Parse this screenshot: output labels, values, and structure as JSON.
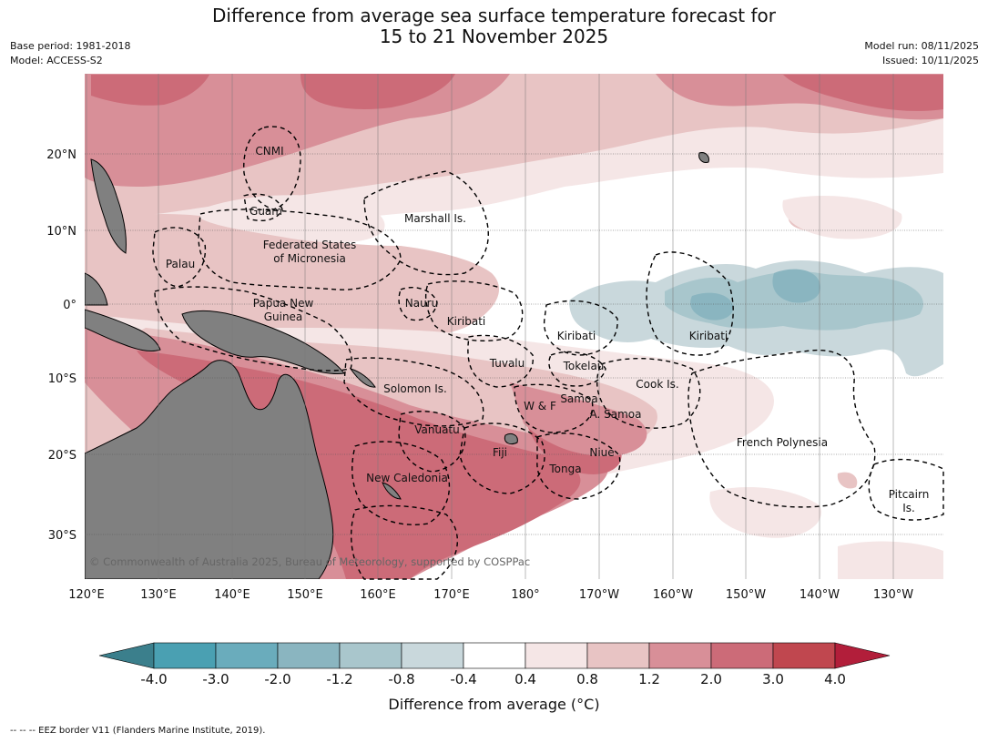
{
  "title": {
    "line1": "Difference from average sea surface temperature forecast for",
    "line2": "15 to 21 November 2025"
  },
  "meta_left": {
    "base_period": "Base period: 1981-2018",
    "model": "Model: ACCESS-S2"
  },
  "meta_right": {
    "model_run": "Model run: 08/11/2025",
    "issued": "Issued: 10/11/2025"
  },
  "map": {
    "lat_ticks": [
      "20°N",
      "10°N",
      "0°",
      "10°S",
      "20°S",
      "30°S"
    ],
    "lon_ticks": [
      "120°E",
      "130°E",
      "140°E",
      "150°E",
      "160°E",
      "170°E",
      "180°",
      "170°W",
      "160°W",
      "150°W",
      "140°W",
      "130°W"
    ],
    "labels": {
      "cnmi": "CNMI",
      "guam": "Guam",
      "marshall": "Marshall Is.",
      "palau": "Palau",
      "fsm": "Federated States",
      "fsm2": "of Micronesia",
      "png": "Papua New",
      "png2": "Guinea",
      "nauru": "Nauru",
      "kiribati_w": "Kiribati",
      "kiribati_c": "Kiribati",
      "kiribati_e": "Kiribati",
      "tuvalu": "Tuvalu",
      "tokelau": "Tokelau",
      "cook": "Cook Is.",
      "solomon": "Solomon Is.",
      "samoa": "Samoa",
      "wf": "W & F",
      "asamoa": "A. Samoa",
      "vanuatu": "Vanuatu",
      "fiji": "Fiji",
      "niue": "Niue",
      "tonga": "Tonga",
      "french_polynesia": "French Polynesia",
      "new_caledonia": "New Caledonia",
      "pitcairn": "Pitcairn",
      "pitcairn2": "Is."
    },
    "copyright": "© Commonwealth of Australia 2025, Bureau of Meteorology, supported by COSPPac",
    "colors": {
      "land": "#808080",
      "neutral": "#ffffff",
      "warm1": "#f5e6e6",
      "warm2": "#e8c4c4",
      "warm3": "#d88f98",
      "warm4": "#cc6b78",
      "cool1": "#c9d8dc",
      "cool2": "#a8c6cc"
    }
  },
  "colorbar": {
    "ticks": [
      "-4.0",
      "-3.0",
      "-2.0",
      "-1.2",
      "-0.8",
      "-0.4",
      "0.4",
      "0.8",
      "1.2",
      "2.0",
      "3.0",
      "4.0"
    ],
    "colors": [
      "#4aa0b2",
      "#6aacbc",
      "#8ab5c0",
      "#a9c6cc",
      "#c9d8dc",
      "#ffffff",
      "#f5e6e6",
      "#e8c4c4",
      "#d88f98",
      "#cc6b78",
      "#c0474f"
    ],
    "low_extend": "#3b7f8c",
    "high_extend": "#b21e3a",
    "label": "Difference from average ($^\\circ$C)"
  },
  "footnote": "--  --  -- EEZ border V11 (Flanders Marine Institute, 2019)."
}
